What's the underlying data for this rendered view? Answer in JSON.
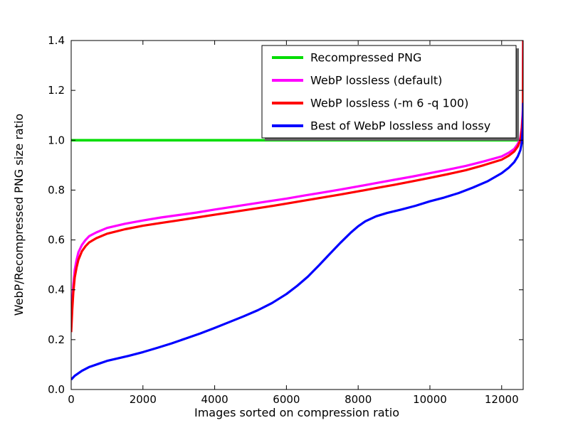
{
  "colors": {
    "background": "#ffffff",
    "frame": "#000000",
    "text": "#000000",
    "legend_shadow": "#666666",
    "legend_background": "#ffffff"
  },
  "chart_data": {
    "type": "line",
    "title": "",
    "xlabel": "Images sorted on compression ratio",
    "ylabel": "WebP/Recompressed PNG size ratio",
    "xlim": [
      0,
      12600
    ],
    "ylim": [
      0,
      1.4
    ],
    "xticks": [
      0,
      2000,
      4000,
      6000,
      8000,
      10000,
      12000
    ],
    "xtick_labels": [
      "0",
      "2000",
      "4000",
      "6000",
      "8000",
      "10000",
      "12000"
    ],
    "yticks": [
      0,
      0.2,
      0.4,
      0.6,
      0.8,
      1.0,
      1.2,
      1.4
    ],
    "ytick_labels": [
      "0.0",
      "0.2",
      "0.4",
      "0.6",
      "0.8",
      "1.0",
      "1.2",
      "1.4"
    ],
    "grid": false,
    "legend": {
      "position": "upper center",
      "shadow": true
    },
    "series": [
      {
        "name": "Recompressed PNG",
        "color": "#00dd00",
        "linewidth": 3.6,
        "points": [
          [
            0,
            1.0
          ],
          [
            12600,
            1.0
          ]
        ]
      },
      {
        "name": "WebP lossless (default)",
        "color": "#ff00ff",
        "linewidth": 3.2,
        "points": [
          [
            0,
            0.25
          ],
          [
            30,
            0.35
          ],
          [
            60,
            0.42
          ],
          [
            100,
            0.48
          ],
          [
            150,
            0.52
          ],
          [
            200,
            0.55
          ],
          [
            300,
            0.58
          ],
          [
            400,
            0.6
          ],
          [
            500,
            0.615
          ],
          [
            700,
            0.63
          ],
          [
            1000,
            0.648
          ],
          [
            1500,
            0.665
          ],
          [
            2000,
            0.678
          ],
          [
            2500,
            0.69
          ],
          [
            3000,
            0.7
          ],
          [
            3500,
            0.71
          ],
          [
            4000,
            0.722
          ],
          [
            4500,
            0.733
          ],
          [
            5000,
            0.744
          ],
          [
            5500,
            0.755
          ],
          [
            6000,
            0.766
          ],
          [
            6500,
            0.778
          ],
          [
            7000,
            0.79
          ],
          [
            7500,
            0.802
          ],
          [
            8000,
            0.815
          ],
          [
            8500,
            0.828
          ],
          [
            9000,
            0.841
          ],
          [
            9500,
            0.854
          ],
          [
            10000,
            0.868
          ],
          [
            10500,
            0.882
          ],
          [
            11000,
            0.897
          ],
          [
            11500,
            0.915
          ],
          [
            12000,
            0.935
          ],
          [
            12200,
            0.95
          ],
          [
            12350,
            0.965
          ],
          [
            12450,
            0.985
          ],
          [
            12520,
            1.01
          ],
          [
            12560,
            1.05
          ],
          [
            12590,
            1.12
          ],
          [
            12600,
            1.4
          ]
        ]
      },
      {
        "name": "WebP lossless (-m 6 -q 100)",
        "color": "#ff0000",
        "linewidth": 3.2,
        "points": [
          [
            0,
            0.23
          ],
          [
            30,
            0.32
          ],
          [
            60,
            0.39
          ],
          [
            100,
            0.45
          ],
          [
            150,
            0.49
          ],
          [
            200,
            0.52
          ],
          [
            300,
            0.555
          ],
          [
            400,
            0.575
          ],
          [
            500,
            0.59
          ],
          [
            700,
            0.607
          ],
          [
            1000,
            0.625
          ],
          [
            1500,
            0.643
          ],
          [
            2000,
            0.657
          ],
          [
            2500,
            0.668
          ],
          [
            3000,
            0.679
          ],
          [
            3500,
            0.69
          ],
          [
            4000,
            0.701
          ],
          [
            4500,
            0.712
          ],
          [
            5000,
            0.723
          ],
          [
            5500,
            0.734
          ],
          [
            6000,
            0.746
          ],
          [
            6500,
            0.758
          ],
          [
            7000,
            0.77
          ],
          [
            7500,
            0.782
          ],
          [
            8000,
            0.795
          ],
          [
            8500,
            0.808
          ],
          [
            9000,
            0.821
          ],
          [
            9500,
            0.835
          ],
          [
            10000,
            0.849
          ],
          [
            10500,
            0.864
          ],
          [
            11000,
            0.88
          ],
          [
            11500,
            0.9
          ],
          [
            12000,
            0.922
          ],
          [
            12200,
            0.938
          ],
          [
            12350,
            0.955
          ],
          [
            12450,
            0.975
          ],
          [
            12520,
            1.0
          ],
          [
            12560,
            1.04
          ],
          [
            12590,
            1.1
          ],
          [
            12600,
            1.4
          ]
        ]
      },
      {
        "name": "Best of WebP lossless and lossy",
        "color": "#0000ff",
        "linewidth": 3.2,
        "points": [
          [
            0,
            0.04
          ],
          [
            100,
            0.055
          ],
          [
            300,
            0.075
          ],
          [
            500,
            0.09
          ],
          [
            800,
            0.105
          ],
          [
            1000,
            0.115
          ],
          [
            1300,
            0.125
          ],
          [
            1600,
            0.135
          ],
          [
            2000,
            0.15
          ],
          [
            2400,
            0.167
          ],
          [
            2800,
            0.185
          ],
          [
            3200,
            0.205
          ],
          [
            3600,
            0.225
          ],
          [
            4000,
            0.247
          ],
          [
            4400,
            0.27
          ],
          [
            4800,
            0.293
          ],
          [
            5200,
            0.318
          ],
          [
            5600,
            0.347
          ],
          [
            6000,
            0.383
          ],
          [
            6300,
            0.416
          ],
          [
            6600,
            0.453
          ],
          [
            6900,
            0.497
          ],
          [
            7200,
            0.543
          ],
          [
            7500,
            0.588
          ],
          [
            7800,
            0.63
          ],
          [
            8000,
            0.655
          ],
          [
            8200,
            0.675
          ],
          [
            8500,
            0.695
          ],
          [
            8800,
            0.708
          ],
          [
            9200,
            0.722
          ],
          [
            9600,
            0.737
          ],
          [
            10000,
            0.755
          ],
          [
            10400,
            0.77
          ],
          [
            10800,
            0.788
          ],
          [
            11200,
            0.81
          ],
          [
            11600,
            0.835
          ],
          [
            12000,
            0.868
          ],
          [
            12200,
            0.89
          ],
          [
            12350,
            0.912
          ],
          [
            12450,
            0.935
          ],
          [
            12520,
            0.96
          ],
          [
            12560,
            0.99
          ],
          [
            12590,
            1.05
          ],
          [
            12600,
            1.15
          ]
        ]
      }
    ]
  }
}
